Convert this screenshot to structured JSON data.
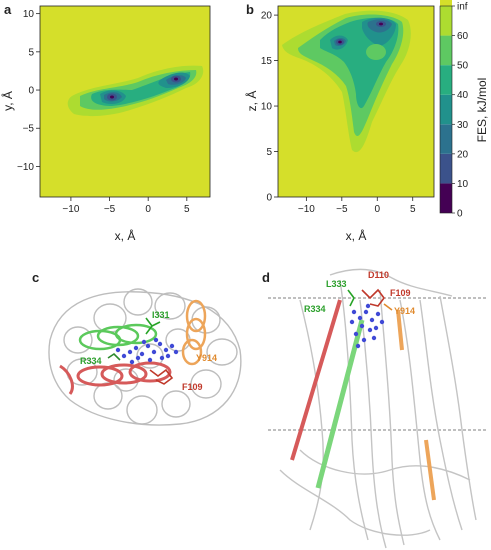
{
  "panels": {
    "a": {
      "letter": "a"
    },
    "b": {
      "letter": "b"
    },
    "c": {
      "letter": "c"
    },
    "d": {
      "letter": "d"
    }
  },
  "chart_data": [
    {
      "type": "heatmap",
      "panel": "a",
      "xlabel": "x, Å",
      "ylabel": "y, Å",
      "xlim": [
        -14,
        8
      ],
      "ylim": [
        -14,
        11
      ],
      "x_ticks": [
        -10,
        -5,
        0,
        5
      ],
      "y_ticks": [
        -10,
        -5,
        0,
        5,
        10
      ],
      "basins": [
        {
          "x": -5,
          "y": 0,
          "level": 0
        },
        {
          "x": 1,
          "y": 2,
          "level": 0
        }
      ]
    },
    {
      "type": "heatmap",
      "panel": "b",
      "xlabel": "x, Å",
      "ylabel": "z, Å",
      "xlim": [
        -14,
        8
      ],
      "ylim": [
        0,
        21
      ],
      "x_ticks": [
        -10,
        -5,
        0,
        5
      ],
      "y_ticks": [
        0,
        5,
        10,
        15,
        20
      ],
      "basins": [
        {
          "x": -5,
          "y": 17,
          "level": 0
        },
        {
          "x": 1,
          "y": 19,
          "level": 0
        }
      ]
    }
  ],
  "colorbar": {
    "label": "FES, kJ/mol",
    "ticks": [
      "0",
      "10",
      "20",
      "30",
      "40",
      "50",
      "60",
      "inf"
    ],
    "colors": [
      "#440154",
      "#3b528b",
      "#2c728e",
      "#21918c",
      "#28ae80",
      "#5ec962",
      "#addc30",
      "#d5df2a"
    ]
  },
  "structure_c": {
    "labels": [
      {
        "text": "I331",
        "color": "#2ca02c"
      },
      {
        "text": "R334",
        "color": "#2ca02c"
      },
      {
        "text": "Y914",
        "color": "#e08a2e"
      },
      {
        "text": "F109",
        "color": "#c0392b"
      }
    ]
  },
  "structure_d": {
    "labels": [
      {
        "text": "L333",
        "color": "#2ca02c"
      },
      {
        "text": "D110",
        "color": "#c0392b"
      },
      {
        "text": "F109",
        "color": "#c0392b"
      },
      {
        "text": "R334",
        "color": "#2ca02c"
      },
      {
        "text": "Y914",
        "color": "#e08a2e"
      }
    ]
  }
}
